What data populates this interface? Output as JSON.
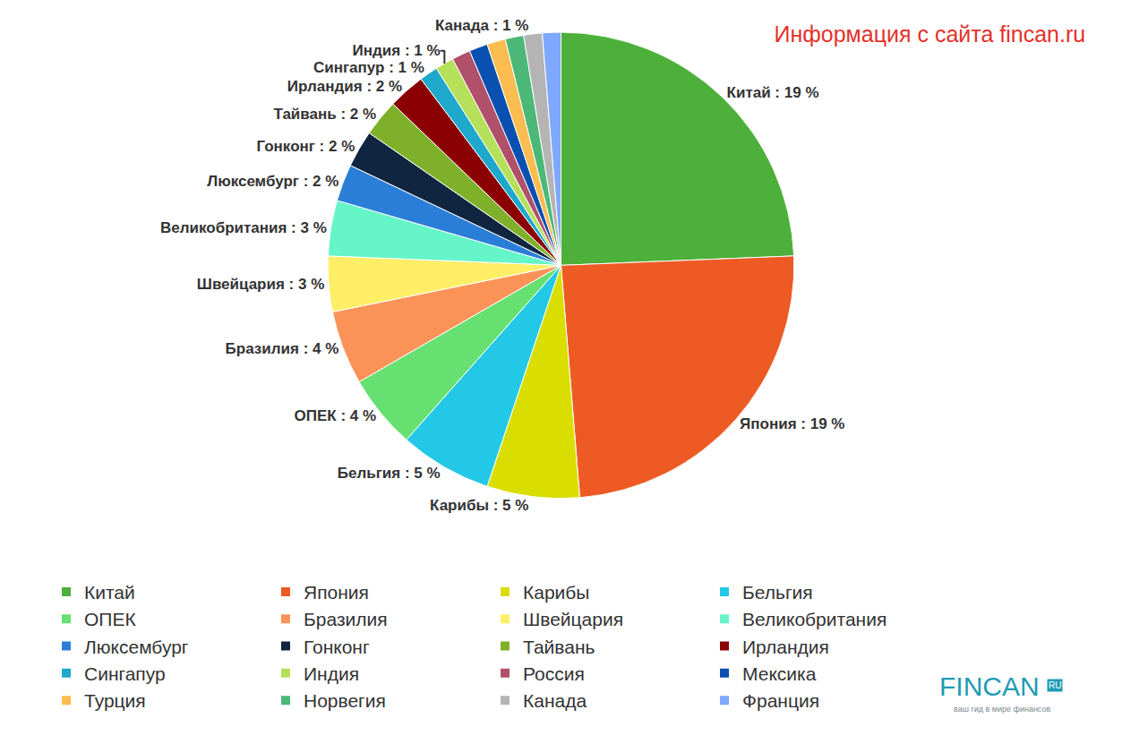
{
  "chart_data": {
    "type": "pie",
    "title": "Информация с сайта fincan.ru",
    "categories": [
      "Китай",
      "Япония",
      "Карибы",
      "Бельгия",
      "ОПЕК",
      "Бразилия",
      "Швейцария",
      "Великобритания",
      "Люксембург",
      "Гонконг",
      "Тайвань",
      "Ирландия",
      "Сингапур",
      "Индия",
      "Россия",
      "Мексика",
      "Турция",
      "Норвегия",
      "Канада",
      "Франция"
    ],
    "values": [
      19,
      19,
      5,
      5,
      4,
      4,
      3,
      3,
      2,
      2,
      2,
      2,
      1,
      1,
      1,
      1,
      1,
      1,
      1,
      1
    ],
    "value_labels": [
      "Китай : 19 %",
      "Япония : 19 %",
      "Карибы : 5 %",
      "Бельгия : 5 %",
      "ОПЕК : 4 %",
      "Бразилия : 4 %",
      "Швейцария : 3 %",
      "Великобритания : 3 %",
      "Люксембург : 2 %",
      "Гонконг : 2 %",
      "Тайвань : 2 %",
      "Ирландия : 2 %",
      "Сингапур : 1 %",
      "Индия : 1 %",
      null,
      null,
      null,
      null,
      "Канада : 1 %",
      null
    ],
    "colors": [
      "#4cb03a",
      "#ed5a24",
      "#d9dd00",
      "#22c8e5",
      "#66e070",
      "#fb9358",
      "#ffee66",
      "#66f5c8",
      "#2a7ed8",
      "#0f2540",
      "#7fb02a",
      "#8b0000",
      "#1ea8cc",
      "#b5e05a",
      "#b0506a",
      "#0a50b0",
      "#fbbc50",
      "#4cb878",
      "#b4b4b4",
      "#7fa8ff"
    ],
    "data_labels": true,
    "legend": "bottom",
    "annotations": [
      "FINCAN",
      "RU",
      "ваш гид в мире финансов"
    ]
  }
}
